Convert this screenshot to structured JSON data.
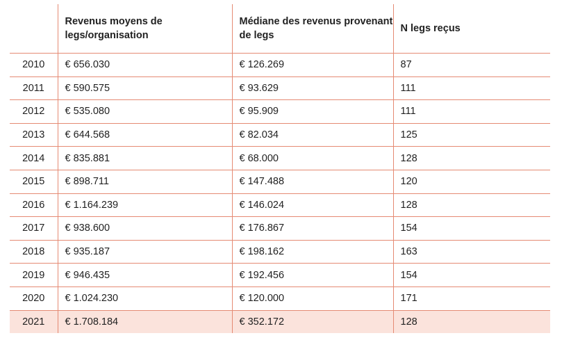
{
  "table": {
    "headers": {
      "year": "",
      "avg": "Revenus moyens de legs/organisation",
      "median": "Médiane des revenus provenant de legs",
      "count": "N legs reçus"
    },
    "rows": [
      {
        "year": "2010",
        "avg": "€ 656.030",
        "median": "€ 126.269",
        "count": "87"
      },
      {
        "year": "2011",
        "avg": "€ 590.575",
        "median": "€ 93.629",
        "count": "111"
      },
      {
        "year": "2012",
        "avg": "€ 535.080",
        "median": "€ 95.909",
        "count": "111"
      },
      {
        "year": "2013",
        "avg": "€ 644.568",
        "median": "€ 82.034",
        "count": "125"
      },
      {
        "year": "2014",
        "avg": "€ 835.881",
        "median": "€ 68.000",
        "count": "128"
      },
      {
        "year": "2015",
        "avg": "€ 898.711",
        "median": "€ 147.488",
        "count": "120"
      },
      {
        "year": "2016",
        "avg": "€ 1.164.239",
        "median": "€ 146.024",
        "count": "128"
      },
      {
        "year": "2017",
        "avg": "€ 938.600",
        "median": "€ 176.867",
        "count": "154"
      },
      {
        "year": "2018",
        "avg": "€ 935.187",
        "median": "€ 198.162",
        "count": "163"
      },
      {
        "year": "2019",
        "avg": "€ 946.435",
        "median": "€ 192.456",
        "count": "154"
      },
      {
        "year": "2020",
        "avg": "€ 1.024.230",
        "median": "€ 120.000",
        "count": "171"
      },
      {
        "year": "2021",
        "avg": "€ 1.708.184",
        "median": "€ 352.172",
        "count": "128"
      }
    ],
    "highlight_color": "#fbe3dc",
    "line_color": "#e58a73"
  }
}
